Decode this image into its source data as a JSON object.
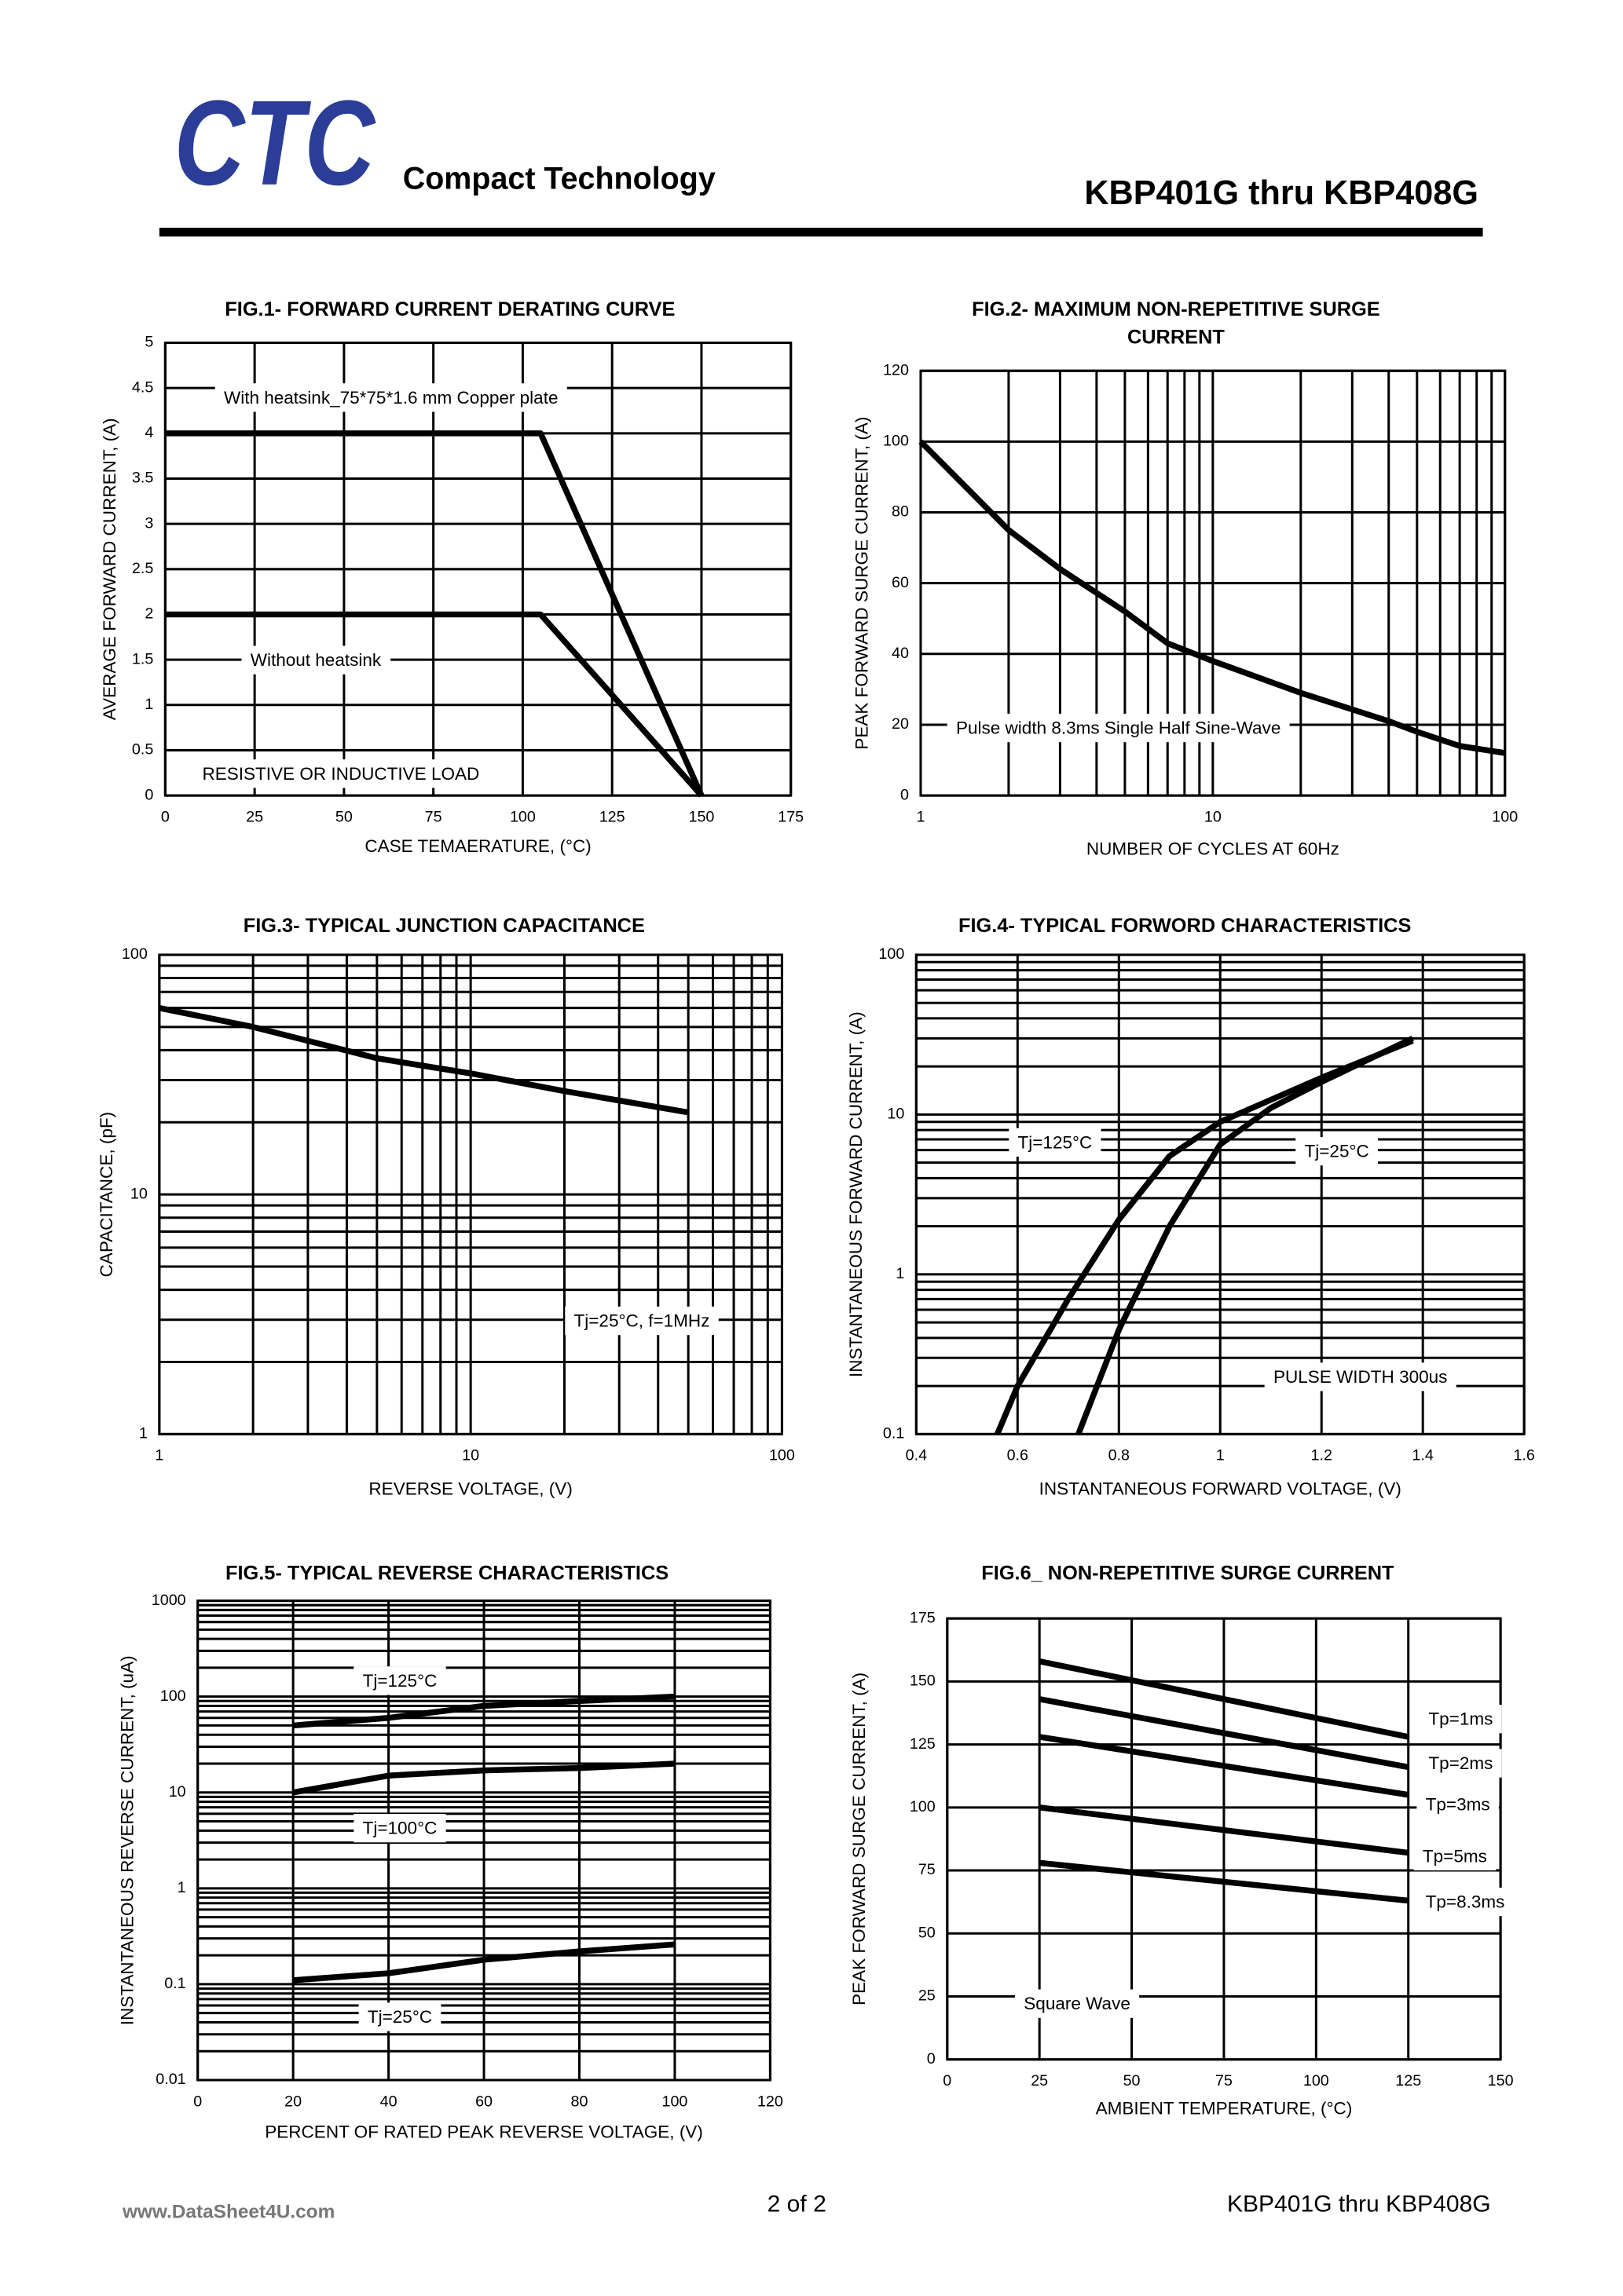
{
  "header": {
    "logo": "CTC",
    "company": "Compact Technology",
    "part": "KBP401G thru KBP408G"
  },
  "chart_data": [
    {
      "type": "line",
      "title": [
        "FIG.1- FORWARD CURRENT DERATING CURVE"
      ],
      "x_label": "CASE TEMAERATURE, (°C)",
      "y_label": "AVERAGE FORWARD CURRENT, (A)",
      "x": [
        0,
        105,
        150
      ],
      "series": [
        {
          "color": "#000000",
          "values": [
            4,
            4,
            0
          ]
        },
        {
          "color": "#000000",
          "values": [
            2,
            2,
            0
          ]
        }
      ],
      "xlim": [
        0,
        175
      ],
      "xticks": [
        0,
        25,
        50,
        75,
        100,
        125,
        150,
        175
      ],
      "ylim": [
        0,
        5
      ],
      "yticks": [
        0,
        0.5,
        1,
        1.5,
        2,
        2.5,
        3,
        3.5,
        4,
        4.5,
        5
      ],
      "grid": true,
      "annotations": [
        "With heatsink_75*75*1.6 mm Copper plate",
        "Without heatsink",
        "RESISTIVE OR INDUCTIVE LOAD"
      ]
    },
    {
      "type": "line",
      "title": [
        "FIG.2- MAXIMUM NON-REPETITIVE SURGE",
        "CURRENT"
      ],
      "x_label": "NUMBER OF CYCLES AT 60Hz",
      "y_label": "PEAK FORWARD SURGE CURRENT, (A)",
      "x": [
        1,
        2,
        3,
        5,
        7,
        10,
        20,
        40,
        50,
        70,
        100
      ],
      "series": [
        {
          "color": "#000000",
          "values": [
            100,
            75,
            64,
            52,
            43,
            38,
            29,
            21,
            18,
            14,
            12
          ]
        }
      ],
      "xscale": "log",
      "xlim": [
        1,
        100
      ],
      "xticks": [
        1,
        10,
        100
      ],
      "ylim": [
        0,
        120
      ],
      "yticks": [
        0,
        20,
        40,
        60,
        80,
        100,
        120
      ],
      "grid": true,
      "annotations": [
        "Pulse width 8.3ms Single Half Sine-Wave"
      ]
    },
    {
      "type": "line",
      "title": [
        "FIG.3- TYPICAL JUNCTION CAPACITANCE"
      ],
      "x_label": "REVERSE VOLTAGE, (V)",
      "y_label": "CAPACITANCE, (pF)",
      "x": [
        1,
        2,
        5,
        10,
        20,
        50
      ],
      "series": [
        {
          "color": "#000000",
          "values": [
            60,
            50,
            37,
            32,
            27,
            22
          ]
        }
      ],
      "xscale": "log",
      "yscale": "log",
      "xlim": [
        1,
        100
      ],
      "xticks": [
        1,
        10,
        100
      ],
      "ylim": [
        1,
        100
      ],
      "yticks": [
        1,
        10,
        100
      ],
      "grid": true,
      "annotations": [
        "Tj=25°C, f=1MHz"
      ]
    },
    {
      "type": "line",
      "title": [
        "FIG.4- TYPICAL FORWORD CHARACTERISTICS"
      ],
      "x_label": "INSTANTANEOUS FORWARD VOLTAGE, (V)",
      "y_label": "INSTANTANEOUS FORWARD CURRENT, (A)",
      "series": [
        {
          "name": "Tj=125°C",
          "color": "#000000",
          "x": [
            0.56,
            0.6,
            0.7,
            0.8,
            0.9,
            1.0,
            1.2,
            1.38
          ],
          "values": [
            0.1,
            0.2,
            0.7,
            2.2,
            5.5,
            9,
            17,
            29
          ]
        },
        {
          "name": "Tj=25°C",
          "color": "#000000",
          "x": [
            0.72,
            0.8,
            0.9,
            1.0,
            1.1,
            1.2,
            1.38
          ],
          "values": [
            0.1,
            0.45,
            2,
            6.5,
            11,
            16,
            30
          ]
        }
      ],
      "yscale": "log",
      "xlim": [
        0.4,
        1.6
      ],
      "xticks": [
        0.4,
        0.6,
        0.8,
        1,
        1.2,
        1.4,
        1.6
      ],
      "ylim": [
        0.1,
        100
      ],
      "yticks": [
        0.1,
        1,
        10,
        100
      ],
      "grid": true,
      "annotations": [
        "PULSE WIDTH 300us"
      ]
    },
    {
      "type": "line",
      "title": [
        "FIG.5- TYPICAL REVERSE CHARACTERISTICS"
      ],
      "x_label": "PERCENT OF RATED PEAK REVERSE VOLTAGE, (V)",
      "y_label": "INSTANTANEOUS REVERSE CURRENT, (uA)",
      "x": [
        20,
        40,
        60,
        80,
        100
      ],
      "series": [
        {
          "name": "Tj=125°C",
          "color": "#000000",
          "values": [
            50,
            60,
            80,
            90,
            100
          ]
        },
        {
          "name": "Tj=100°C",
          "color": "#000000",
          "values": [
            10,
            15,
            17,
            18,
            20
          ]
        },
        {
          "name": "Tj=25°C",
          "color": "#000000",
          "values": [
            0.11,
            0.13,
            0.18,
            0.22,
            0.26
          ]
        }
      ],
      "yscale": "log",
      "xlim": [
        0,
        120
      ],
      "xticks": [
        0,
        20,
        40,
        60,
        80,
        100,
        120
      ],
      "ylim": [
        0.01,
        1000
      ],
      "yticks": [
        0.01,
        0.1,
        1,
        10,
        100,
        1000
      ],
      "grid": true,
      "annotations": []
    },
    {
      "type": "line",
      "title": [
        "FIG.6_ NON-REPETITIVE SURGE CURRENT"
      ],
      "x_label": "AMBIENT TEMPERATURE, (°C)",
      "y_label": "PEAK FORWARD SURGE CURRENT, (A)",
      "x": [
        25,
        125
      ],
      "series": [
        {
          "name": "Tp=1ms",
          "color": "#000000",
          "values": [
            158,
            128
          ]
        },
        {
          "name": "Tp=2ms",
          "color": "#000000",
          "values": [
            143,
            116
          ]
        },
        {
          "name": "Tp=3ms",
          "color": "#000000",
          "values": [
            128,
            105
          ]
        },
        {
          "name": "Tp=5ms",
          "color": "#000000",
          "values": [
            100,
            82
          ]
        },
        {
          "name": "Tp=8.3ms",
          "color": "#000000",
          "values": [
            78,
            63
          ]
        }
      ],
      "xlim": [
        0,
        150
      ],
      "xticks": [
        0,
        25,
        50,
        75,
        100,
        125,
        150
      ],
      "ylim": [
        0,
        175
      ],
      "yticks": [
        0,
        25,
        50,
        75,
        100,
        125,
        150,
        175
      ],
      "grid": true,
      "annotations": [
        "Square Wave"
      ]
    }
  ],
  "footer": {
    "website": "www.DataSheet4U.com",
    "page": "2 of 2",
    "part": "KBP401G thru KBP408G"
  }
}
